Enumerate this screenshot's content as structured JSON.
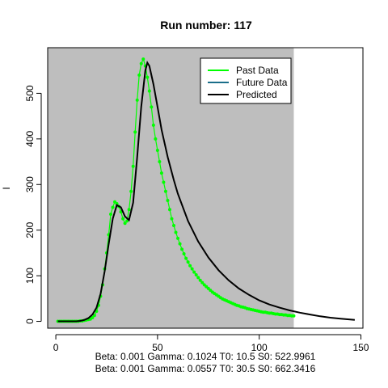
{
  "chart_data": {
    "type": "line",
    "title": "Run number:  117",
    "xlabel": "",
    "ylabel": "I",
    "xlim": [
      -4,
      151
    ],
    "ylim": [
      -15,
      600
    ],
    "shaded_region_x": [
      -4,
      117
    ],
    "shaded_color": "#bebebe",
    "x_ticks": [
      0,
      50,
      100,
      150
    ],
    "y_ticks": [
      0,
      100,
      200,
      300,
      400,
      500
    ],
    "subtitle_lines": [
      "Beta:  0.001 Gamma:  0.1024 T0:  10.5 S0:  522.9961",
      "Beta:  0.001 Gamma:  0.0557 T0:  30.5 S0:  662.3416"
    ],
    "legend": {
      "position": "top-right",
      "entries": [
        {
          "label": "Past Data",
          "color": "#00ff00"
        },
        {
          "label": "Future Data",
          "color": "#1a6e8a"
        },
        {
          "label": "Predicted",
          "color": "#000000"
        }
      ]
    },
    "series": [
      {
        "name": "Past Data",
        "color": "#00ff00",
        "style": "points+line",
        "x": [
          1,
          2,
          3,
          4,
          5,
          6,
          7,
          8,
          9,
          10,
          11,
          12,
          13,
          14,
          15,
          16,
          17,
          18,
          19,
          20,
          21,
          22,
          23,
          24,
          25,
          26,
          27,
          28,
          29,
          30,
          31,
          32,
          33,
          34,
          35,
          36,
          37,
          38,
          39,
          40,
          41,
          42,
          43,
          44,
          45,
          46,
          47,
          48,
          49,
          50,
          51,
          52,
          53,
          54,
          55,
          56,
          57,
          58,
          59,
          60,
          61,
          62,
          63,
          64,
          65,
          66,
          67,
          68,
          69,
          70,
          71,
          72,
          73,
          74,
          75,
          76,
          77,
          78,
          79,
          80,
          81,
          82,
          83,
          84,
          85,
          86,
          87,
          88,
          89,
          90,
          91,
          92,
          93,
          94,
          95,
          96,
          97,
          98,
          99,
          100,
          101,
          102,
          103,
          104,
          105,
          106,
          107,
          108,
          109,
          110,
          111,
          112,
          113,
          114,
          115,
          116,
          117
        ],
        "y": [
          0,
          0,
          0,
          0,
          0,
          0,
          0,
          0,
          0,
          0,
          0,
          1,
          1,
          2,
          3,
          4,
          5,
          8,
          13,
          22,
          35,
          55,
          80,
          115,
          150,
          190,
          235,
          250,
          262,
          258,
          252,
          240,
          225,
          215,
          220,
          245,
          285,
          340,
          415,
          485,
          540,
          565,
          575,
          560,
          535,
          505,
          470,
          430,
          400,
          375,
          350,
          325,
          305,
          285,
          265,
          245,
          225,
          210,
          195,
          182,
          170,
          158,
          148,
          138,
          130,
          122,
          115,
          108,
          102,
          96,
          90,
          85,
          80,
          76,
          72,
          68,
          64,
          61,
          58,
          55,
          52,
          49,
          47,
          45,
          43,
          41,
          39,
          37,
          35,
          34,
          32,
          31,
          30,
          28,
          27,
          26,
          25,
          24,
          23,
          22,
          21,
          20,
          20,
          19,
          18,
          18,
          17,
          16,
          16,
          15,
          15,
          14,
          14,
          13,
          13,
          12,
          12
        ]
      },
      {
        "name": "Predicted",
        "color": "#000000",
        "style": "line",
        "x": [
          1,
          5,
          10,
          12,
          14,
          16,
          18,
          20,
          22,
          24,
          26,
          28,
          30,
          32,
          34,
          36,
          38,
          40,
          42,
          44,
          45,
          46,
          48,
          50,
          52,
          55,
          58,
          60,
          65,
          70,
          75,
          80,
          85,
          90,
          95,
          100,
          105,
          110,
          115,
          120,
          125,
          130,
          135,
          140,
          147
        ],
        "y": [
          0,
          0,
          0,
          1,
          3,
          7,
          15,
          30,
          60,
          110,
          170,
          225,
          255,
          250,
          230,
          222,
          260,
          360,
          470,
          550,
          567,
          560,
          520,
          470,
          420,
          360,
          310,
          280,
          220,
          175,
          140,
          112,
          90,
          72,
          58,
          46,
          37,
          30,
          24,
          19,
          15,
          11,
          8,
          6,
          3
        ]
      }
    ]
  }
}
